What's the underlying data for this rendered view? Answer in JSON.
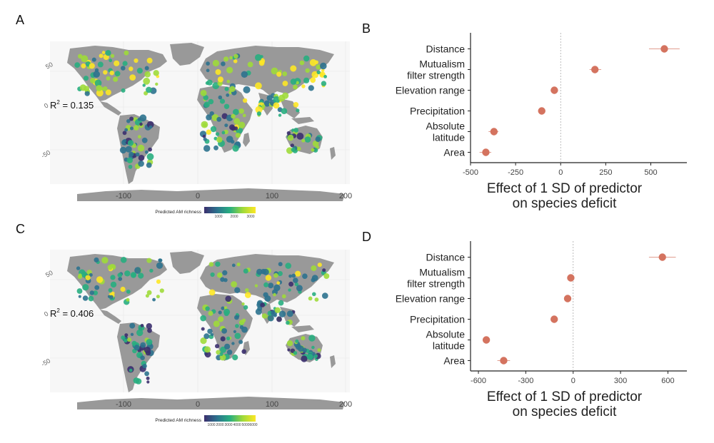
{
  "panels": [
    {
      "letter": "A",
      "r2_label": "R",
      "r2_sup": "2",
      "r2_value": " = 0.135",
      "lat_ticks": [
        "50",
        "0",
        "-50"
      ],
      "lon_ticks": [
        "-100",
        "0",
        "100",
        "200"
      ],
      "legend_title": "Predicted AM richness",
      "legend_ticks": [
        "1000",
        "2000",
        "3000"
      ],
      "colorscale": [
        "#3b2f6e",
        "#2c728e",
        "#28ae80",
        "#9fda3a",
        "#fde725"
      ]
    },
    {
      "letter": "C",
      "r2_label": "R",
      "r2_sup": "2",
      "r2_value": " = 0.406",
      "lat_ticks": [
        "50",
        "0",
        "-50"
      ],
      "lon_ticks": [
        "-100",
        "0",
        "100",
        "200"
      ],
      "legend_title": "Predicted AM richness",
      "legend_ticks": [
        "1000",
        "2000",
        "3000",
        "4000",
        "5000",
        "6000"
      ],
      "colorscale": [
        "#3b2f6e",
        "#2c728e",
        "#28ae80",
        "#9fda3a",
        "#fde725"
      ]
    }
  ],
  "chart_data": [
    {
      "panel": "B",
      "type": "scatter",
      "orientation": "horizontal",
      "categories": [
        "Distance",
        "Mutualism\nfilter strength",
        "Elevation range",
        "Precipitation",
        "Absolute\nlatitude",
        "Area"
      ],
      "values": [
        575,
        190,
        -35,
        -105,
        -370,
        -415
      ],
      "ci_low": [
        490,
        160,
        -55,
        -125,
        -400,
        -450
      ],
      "ci_high": [
        660,
        225,
        -15,
        -85,
        -345,
        -385
      ],
      "xlim": [
        -500,
        700
      ],
      "xticks": [
        "-500",
        "-250",
        "0",
        "250",
        "500"
      ],
      "xtick_values": [
        -500,
        -250,
        0,
        250,
        500
      ],
      "xlabel": [
        "Effect of 1 SD of predictor",
        "on species deficit"
      ],
      "point_color": "#d4735f",
      "grid": false
    },
    {
      "panel": "D",
      "type": "scatter",
      "orientation": "horizontal",
      "categories": [
        "Distance",
        "Mutualism\nfilter strength",
        "Elevation range",
        "Precipitation",
        "Absolute\nlatitude",
        "Area"
      ],
      "values": [
        565,
        -15,
        -35,
        -120,
        -550,
        -440
      ],
      "ci_low": [
        480,
        -30,
        -55,
        -135,
        -565,
        -480
      ],
      "ci_high": [
        650,
        0,
        -15,
        -100,
        -535,
        -400
      ],
      "xlim": [
        -650,
        720
      ],
      "xticks": [
        "-600",
        "-300",
        "0",
        "300",
        "600"
      ],
      "xtick_values": [
        -600,
        -300,
        0,
        300,
        600
      ],
      "xlabel": [
        "Effect of 1 SD of predictor",
        "on species deficit"
      ],
      "point_color": "#d4735f",
      "grid": false
    }
  ]
}
